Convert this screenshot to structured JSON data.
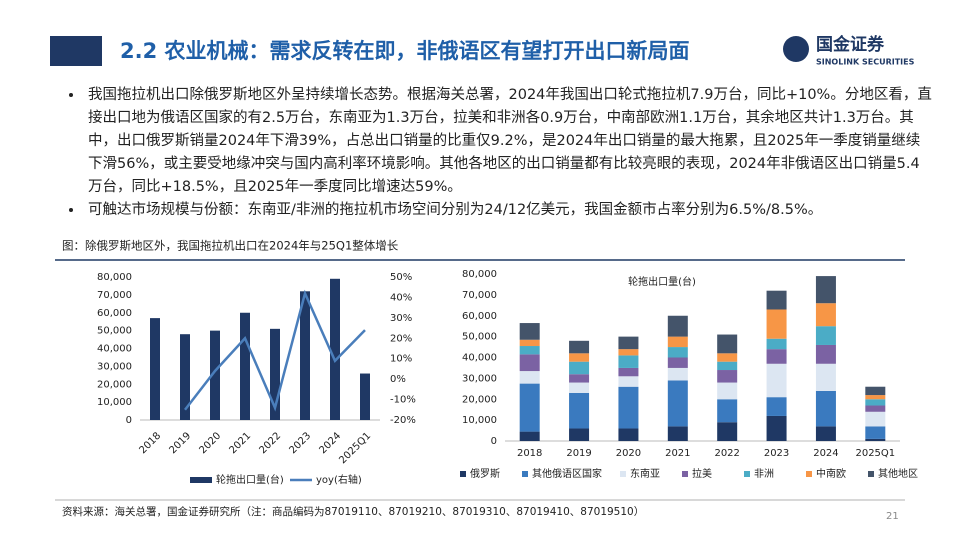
{
  "header": {
    "title": "2.2 农业机械：需求反转在即，非俄语区有望打开出口新局面",
    "logo_cn": "国金证券",
    "logo_en": "SINOLINK SECURITIES"
  },
  "bullets": [
    "我国拖拉机出口除俄罗斯地区外呈持续增长态势。根据海关总署，2024年我国出口轮式拖拉机7.9万台，同比+10%。分地区看，直接出口地为俄语区国家的有2.5万台，东南亚为1.3万台，拉美和非洲各0.9万台，中南部欧洲1.1万台，其余地区共计1.3万台。其中，出口俄罗斯销量2024年下滑39%，占总出口销量的比重仅9.2%，是2024年出口销量的最大拖累，且2025年一季度销量继续下滑56%，或主要受地缘冲突与国内高利率环境影响。其他各地区的出口销量都有比较亮眼的表现，2024年非俄语区出口销量5.4万台，同比+18.5%，且2025年一季度同比增速达59%。",
    "可触达市场规模与份额：东南亚/非洲的拖拉机市场空间分别为24/12亿美元，我国金额市占率分别为6.5%/8.5%。"
  ],
  "figure_caption": "图：除俄罗斯地区外，我国拖拉机出口在2024年与25Q1整体增长",
  "source": "资料来源：海关总署，国金证券研究所（注：商品编码为87019110、87019210、87019310、87019410、87019510）",
  "page_number": "21",
  "chart_data": [
    {
      "type": "bar_line",
      "categories": [
        "2018",
        "2019",
        "2020",
        "2021",
        "2022",
        "2023",
        "2024",
        "2025Q1"
      ],
      "series": [
        {
          "name": "轮拖出口量(台)",
          "type": "bar",
          "color": "#1f3864",
          "values": [
            57000,
            48000,
            50000,
            60000,
            51000,
            72000,
            79000,
            26000
          ]
        },
        {
          "name": "yoy(右轴)",
          "type": "line",
          "axis": "y2",
          "color": "#4a7ebb",
          "values": [
            null,
            -15,
            4,
            20,
            -14,
            42,
            9,
            24
          ]
        }
      ],
      "ylim": [
        0,
        80000
      ],
      "yticks": [
        0,
        {
          "value": 10000,
          "label": "10,000"
        },
        {
          "value": 20000,
          "label": "20,000"
        },
        {
          "value": 30000,
          "label": "30,000"
        },
        {
          "value": 40000,
          "label": "40,000"
        },
        {
          "value": 50000,
          "label": "50,000"
        },
        {
          "value": 60000,
          "label": "60,000"
        },
        {
          "value": 70000,
          "label": "70,000"
        },
        {
          "value": 80000,
          "label": "80,000"
        }
      ],
      "y2lim": [
        -20,
        50
      ],
      "y2ticks": [
        {
          "value": -20,
          "label": "-20%"
        },
        {
          "value": -10,
          "label": "-10%"
        },
        {
          "value": 0,
          "label": "0%"
        },
        {
          "value": 10,
          "label": "10%"
        },
        {
          "value": 20,
          "label": "20%"
        },
        {
          "value": 30,
          "label": "30%"
        },
        {
          "value": 40,
          "label": "40%"
        },
        {
          "value": 50,
          "label": "50%"
        }
      ]
    },
    {
      "type": "stacked_bar",
      "title": "轮拖出口量(台)",
      "categories": [
        "2018",
        "2019",
        "2020",
        "2021",
        "2022",
        "2023",
        "2024",
        "2025Q1"
      ],
      "series": [
        {
          "name": "俄罗斯",
          "color": "#1f3864",
          "values": [
            4500,
            6000,
            6000,
            7000,
            9000,
            12000,
            7000,
            1000
          ]
        },
        {
          "name": "其他俄语区国家",
          "color": "#3a7abf",
          "values": [
            23000,
            17000,
            20000,
            22000,
            11000,
            9000,
            17000,
            6000
          ]
        },
        {
          "name": "东南亚",
          "color": "#dce6f2",
          "values": [
            6000,
            5000,
            5000,
            6000,
            8000,
            16000,
            13000,
            7000
          ]
        },
        {
          "name": "拉美",
          "color": "#7b62a3",
          "values": [
            8000,
            4000,
            4000,
            5000,
            6000,
            7000,
            9000,
            3000
          ]
        },
        {
          "name": "非洲",
          "color": "#4bacc6",
          "values": [
            4000,
            6000,
            6000,
            5000,
            4000,
            5000,
            9000,
            3000
          ]
        },
        {
          "name": "中南欧",
          "color": "#f79646",
          "values": [
            3000,
            4000,
            3000,
            5000,
            4000,
            14000,
            11000,
            2000
          ]
        },
        {
          "name": "其他地区",
          "color": "#44546a",
          "values": [
            8000,
            6000,
            6000,
            10000,
            9000,
            9000,
            13000,
            4000
          ]
        }
      ],
      "ylim": [
        0,
        80000
      ],
      "yticks": [
        0,
        {
          "value": 10000,
          "label": "10,000"
        },
        {
          "value": 20000,
          "label": "20,000"
        },
        {
          "value": 30000,
          "label": "30,000"
        },
        {
          "value": 40000,
          "label": "40,000"
        },
        {
          "value": 50000,
          "label": "50,000"
        },
        {
          "value": 60000,
          "label": "60,000"
        },
        {
          "value": 70000,
          "label": "70,000"
        },
        {
          "value": 80000,
          "label": "80,000"
        }
      ]
    }
  ]
}
